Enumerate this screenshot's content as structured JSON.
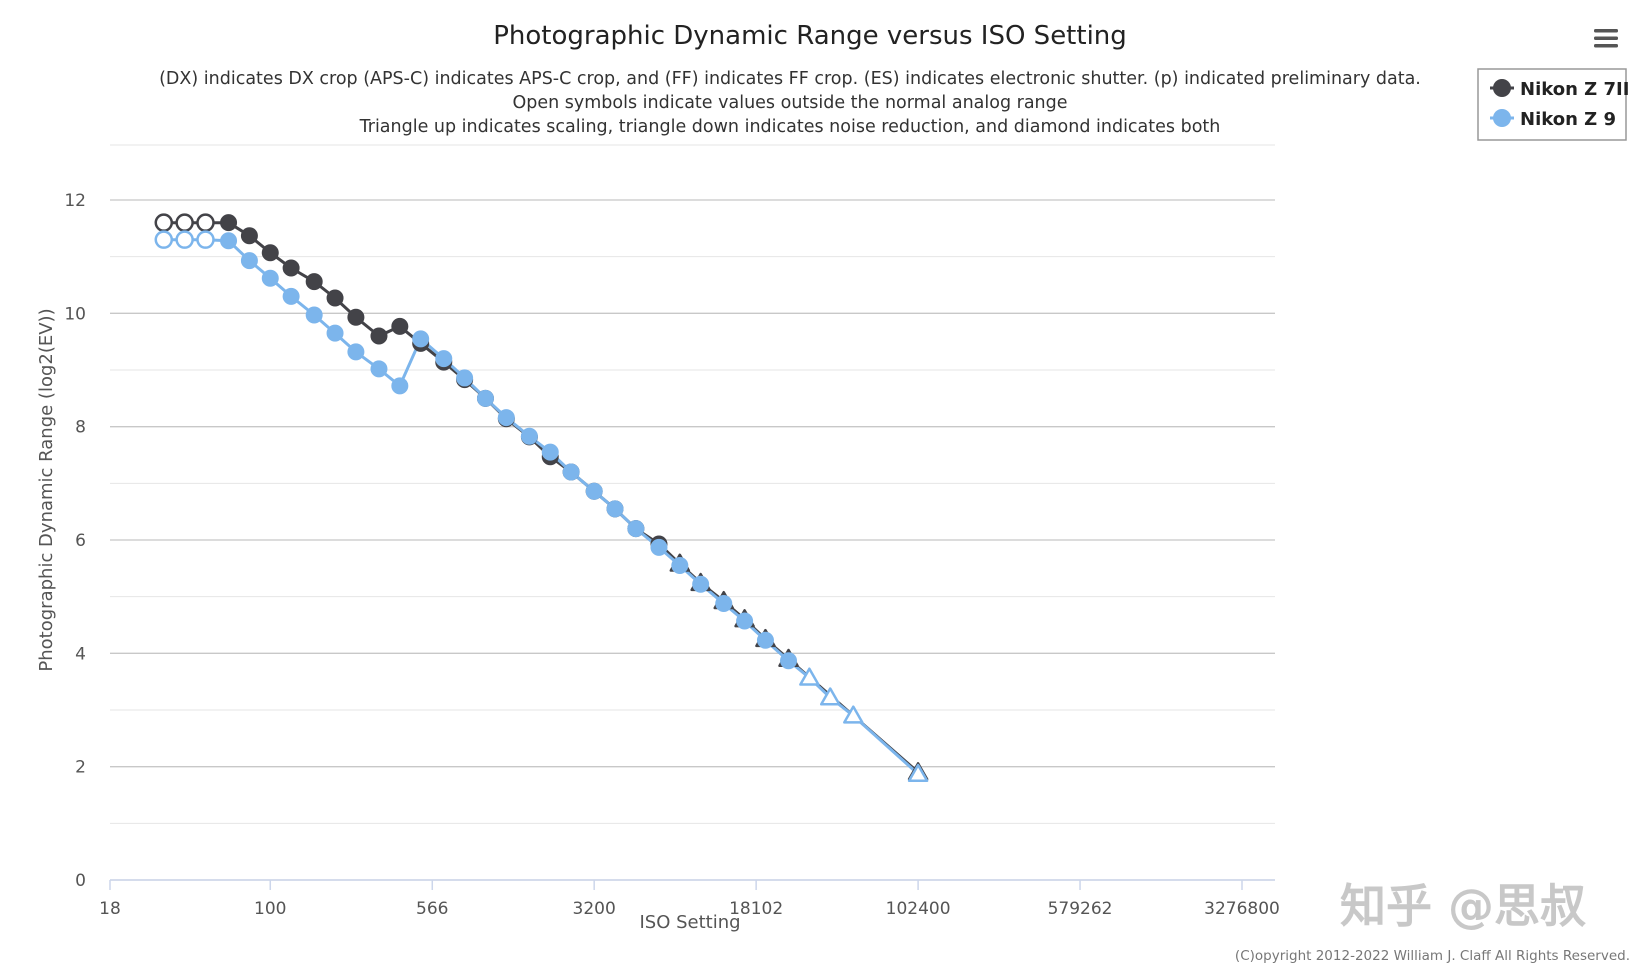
{
  "chart_data": {
    "type": "line",
    "title": "Photographic Dynamic Range versus ISO Setting",
    "subtitle": [
      "(DX) indicates DX crop (APS-C) indicates APS-C crop, and (FF) indicates FF crop. (ES) indicates electronic shutter. (p) indicated preliminary data.",
      "Open symbols indicate values outside the normal analog range",
      "Triangle up indicates scaling, triangle down indicates noise reduction, and diamond indicates both"
    ],
    "xlabel": "ISO Setting",
    "ylabel": "Photographic Dynamic Range (log2(EV))",
    "x_scale": "log2",
    "xlim": [
      18,
      4000000
    ],
    "ylim": [
      0,
      12.5
    ],
    "x_ticks": [
      18,
      100,
      566,
      3200,
      18102,
      102400,
      579262,
      3276800
    ],
    "x_tick_labels": [
      "18",
      "100",
      "566",
      "3200",
      "18102",
      "102400",
      "579262",
      "3276800"
    ],
    "y_ticks": [
      0,
      2,
      4,
      6,
      8,
      10,
      12
    ],
    "y_tick_labels": [
      "0",
      "2",
      "4",
      "6",
      "8",
      "10",
      "12"
    ],
    "grid": true,
    "legend_position": "top-right",
    "series": [
      {
        "name": "Nikon Z 7II",
        "color": "#434348",
        "points": [
          {
            "x": 32,
            "y": 11.6,
            "marker": "open-circle"
          },
          {
            "x": 40,
            "y": 11.6,
            "marker": "open-circle"
          },
          {
            "x": 50,
            "y": 11.6,
            "marker": "open-circle"
          },
          {
            "x": 64,
            "y": 11.6,
            "marker": "circle"
          },
          {
            "x": 80,
            "y": 11.37,
            "marker": "circle"
          },
          {
            "x": 100,
            "y": 11.07,
            "marker": "circle"
          },
          {
            "x": 125,
            "y": 10.8,
            "marker": "circle"
          },
          {
            "x": 160,
            "y": 10.56,
            "marker": "circle"
          },
          {
            "x": 200,
            "y": 10.27,
            "marker": "circle"
          },
          {
            "x": 250,
            "y": 9.93,
            "marker": "circle"
          },
          {
            "x": 320,
            "y": 9.6,
            "marker": "circle"
          },
          {
            "x": 400,
            "y": 9.77,
            "marker": "circle"
          },
          {
            "x": 500,
            "y": 9.47,
            "marker": "circle"
          },
          {
            "x": 640,
            "y": 9.14,
            "marker": "circle"
          },
          {
            "x": 800,
            "y": 8.83,
            "marker": "circle"
          },
          {
            "x": 1000,
            "y": 8.5,
            "marker": "circle"
          },
          {
            "x": 1250,
            "y": 8.14,
            "marker": "circle"
          },
          {
            "x": 1600,
            "y": 7.82,
            "marker": "circle"
          },
          {
            "x": 2000,
            "y": 7.47,
            "marker": "circle"
          },
          {
            "x": 2500,
            "y": 7.2,
            "marker": "circle"
          },
          {
            "x": 3200,
            "y": 6.86,
            "marker": "circle"
          },
          {
            "x": 4000,
            "y": 6.55,
            "marker": "circle"
          },
          {
            "x": 5000,
            "y": 6.2,
            "marker": "circle"
          },
          {
            "x": 6400,
            "y": 5.93,
            "marker": "circle"
          },
          {
            "x": 8000,
            "y": 5.58,
            "marker": "triangle"
          },
          {
            "x": 10000,
            "y": 5.24,
            "marker": "triangle"
          },
          {
            "x": 12800,
            "y": 4.92,
            "marker": "triangle"
          },
          {
            "x": 16000,
            "y": 4.6,
            "marker": "triangle"
          },
          {
            "x": 20000,
            "y": 4.25,
            "marker": "triangle"
          },
          {
            "x": 25600,
            "y": 3.9,
            "marker": "triangle"
          },
          {
            "x": 102400,
            "y": 1.9,
            "marker": "triangle"
          }
        ]
      },
      {
        "name": "Nikon Z 9",
        "color": "#7cb5ec",
        "points": [
          {
            "x": 32,
            "y": 11.3,
            "marker": "open-circle"
          },
          {
            "x": 40,
            "y": 11.3,
            "marker": "open-circle"
          },
          {
            "x": 50,
            "y": 11.3,
            "marker": "open-circle"
          },
          {
            "x": 64,
            "y": 11.28,
            "marker": "circle"
          },
          {
            "x": 80,
            "y": 10.93,
            "marker": "circle"
          },
          {
            "x": 100,
            "y": 10.62,
            "marker": "circle"
          },
          {
            "x": 125,
            "y": 10.3,
            "marker": "circle"
          },
          {
            "x": 160,
            "y": 9.97,
            "marker": "circle"
          },
          {
            "x": 200,
            "y": 9.65,
            "marker": "circle"
          },
          {
            "x": 250,
            "y": 9.32,
            "marker": "circle"
          },
          {
            "x": 320,
            "y": 9.02,
            "marker": "circle"
          },
          {
            "x": 400,
            "y": 8.72,
            "marker": "circle"
          },
          {
            "x": 500,
            "y": 9.55,
            "marker": "circle"
          },
          {
            "x": 640,
            "y": 9.2,
            "marker": "circle"
          },
          {
            "x": 800,
            "y": 8.86,
            "marker": "circle"
          },
          {
            "x": 1000,
            "y": 8.5,
            "marker": "circle"
          },
          {
            "x": 1250,
            "y": 8.16,
            "marker": "circle"
          },
          {
            "x": 1600,
            "y": 7.83,
            "marker": "circle"
          },
          {
            "x": 2000,
            "y": 7.55,
            "marker": "circle"
          },
          {
            "x": 2500,
            "y": 7.2,
            "marker": "circle"
          },
          {
            "x": 3200,
            "y": 6.86,
            "marker": "circle"
          },
          {
            "x": 4000,
            "y": 6.55,
            "marker": "circle"
          },
          {
            "x": 5000,
            "y": 6.2,
            "marker": "circle"
          },
          {
            "x": 6400,
            "y": 5.87,
            "marker": "circle"
          },
          {
            "x": 8000,
            "y": 5.55,
            "marker": "circle"
          },
          {
            "x": 10000,
            "y": 5.22,
            "marker": "circle"
          },
          {
            "x": 12800,
            "y": 4.88,
            "marker": "circle"
          },
          {
            "x": 16000,
            "y": 4.57,
            "marker": "circle"
          },
          {
            "x": 20000,
            "y": 4.23,
            "marker": "circle"
          },
          {
            "x": 25600,
            "y": 3.87,
            "marker": "circle"
          },
          {
            "x": 32000,
            "y": 3.57,
            "marker": "open-triangle"
          },
          {
            "x": 40000,
            "y": 3.22,
            "marker": "open-triangle"
          },
          {
            "x": 51200,
            "y": 2.9,
            "marker": "open-triangle"
          },
          {
            "x": 102400,
            "y": 1.87,
            "marker": "open-triangle"
          }
        ]
      }
    ]
  },
  "menu_icon": "hamburger-menu-icon",
  "credits": "(C)opyright 2012-2022 William J. Claff All Rights Reserved.",
  "watermark": "知乎 @思叔"
}
